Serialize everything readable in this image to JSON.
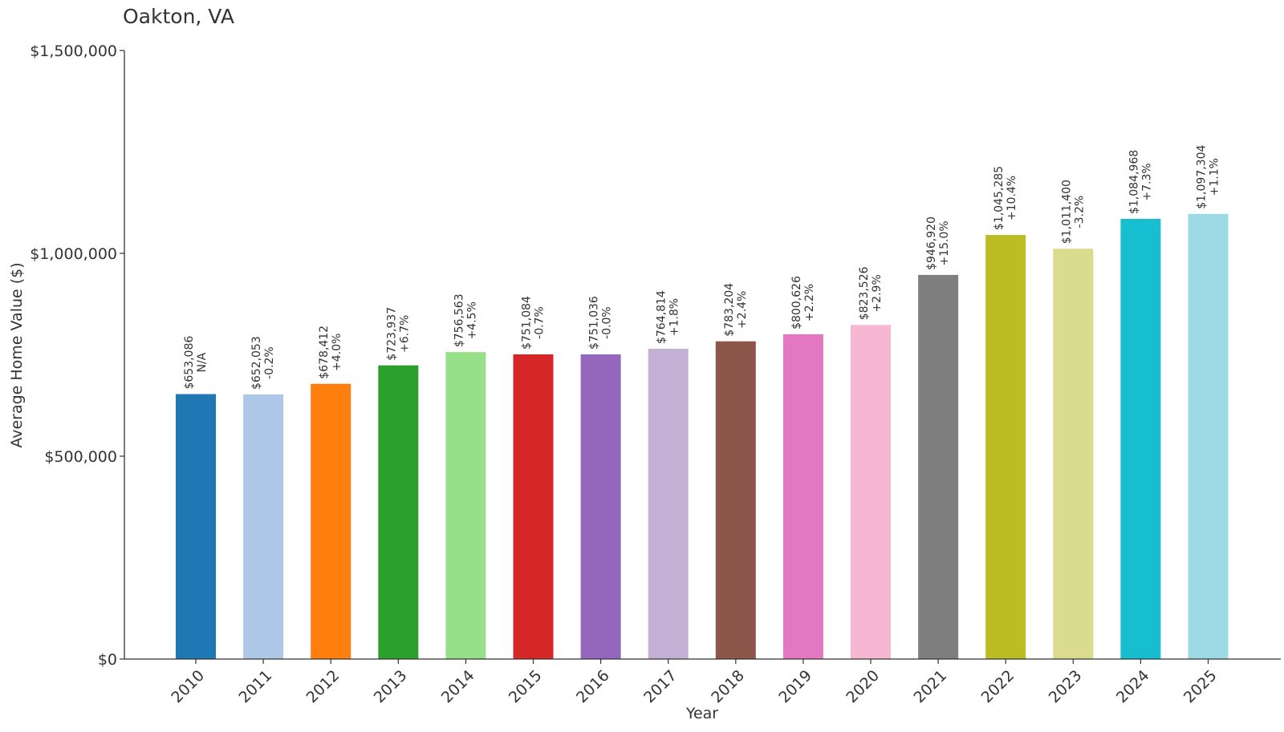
{
  "chart_data": {
    "type": "bar",
    "title": "Oakton, VA",
    "xlabel": "Year",
    "ylabel": "Average Home Value ($)",
    "ylim": [
      0,
      1500000
    ],
    "yticks": [
      0,
      500000,
      1000000,
      1500000
    ],
    "ytick_labels": [
      "$0",
      "$500,000",
      "$1,000,000",
      "$1,500,000"
    ],
    "grid": false,
    "legend": "none",
    "categories": [
      "2010",
      "2011",
      "2012",
      "2013",
      "2014",
      "2015",
      "2016",
      "2017",
      "2018",
      "2019",
      "2020",
      "2021",
      "2022",
      "2023",
      "2024",
      "2025"
    ],
    "values": [
      653086,
      652053,
      678412,
      723937,
      756563,
      751084,
      751036,
      764814,
      783204,
      800626,
      823526,
      946920,
      1045285,
      1011400,
      1084968,
      1097304
    ],
    "value_labels": [
      "$653,086",
      "$652,053",
      "$678,412",
      "$723,937",
      "$756,563",
      "$751,084",
      "$751,036",
      "$764,814",
      "$783,204",
      "$800,626",
      "$823,526",
      "$946,920",
      "$1,045,285",
      "$1,011,400",
      "$1,084,968",
      "$1,097,304"
    ],
    "change_labels": [
      "N/A",
      "-0.2%",
      "+4.0%",
      "+6.7%",
      "+4.5%",
      "-0.7%",
      "-0.0%",
      "+1.8%",
      "+2.4%",
      "+2.2%",
      "+2.9%",
      "+15.0%",
      "+10.4%",
      "-3.2%",
      "+7.3%",
      "+1.1%"
    ],
    "colors": [
      "#1f77b4",
      "#aec7e8",
      "#ff7f0e",
      "#2ca02c",
      "#98df8a",
      "#d62728",
      "#9467bd",
      "#c5b0d5",
      "#8c564b",
      "#e377c2",
      "#f7b6d2",
      "#7f7f7f",
      "#bcbd22",
      "#dbdb8d",
      "#17becf",
      "#9edae5"
    ]
  }
}
